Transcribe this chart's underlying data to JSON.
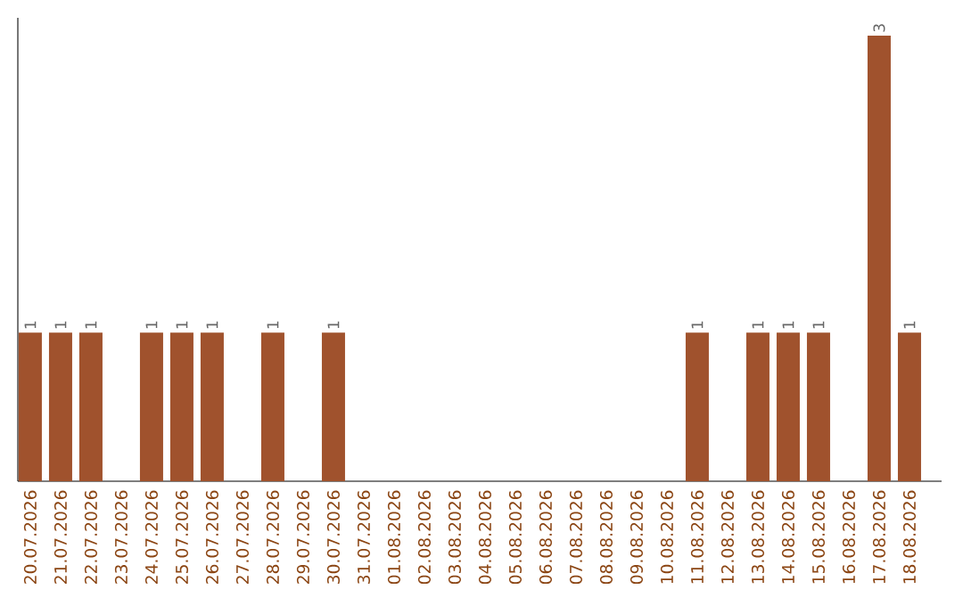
{
  "chart_data": {
    "type": "bar",
    "categories": [
      "20.07.2026",
      "21.07.2026",
      "22.07.2026",
      "23.07.2026",
      "24.07.2026",
      "25.07.2026",
      "26.07.2026",
      "27.07.2026",
      "28.07.2026",
      "29.07.2026",
      "30.07.2026",
      "31.07.2026",
      "01.08.2026",
      "02.08.2026",
      "03.08.2026",
      "04.08.2026",
      "05.08.2026",
      "06.08.2026",
      "07.08.2026",
      "08.08.2026",
      "09.08.2026",
      "10.08.2026",
      "11.08.2026",
      "12.08.2026",
      "13.08.2026",
      "14.08.2026",
      "15.08.2026",
      "16.08.2026",
      "17.08.2026",
      "18.08.2026"
    ],
    "values": [
      1,
      1,
      1,
      0,
      1,
      1,
      1,
      0,
      1,
      0,
      1,
      0,
      0,
      0,
      0,
      0,
      0,
      0,
      0,
      0,
      0,
      0,
      1,
      0,
      1,
      1,
      1,
      0,
      3,
      1
    ],
    "value_labels": [
      "1",
      "1",
      "1",
      null,
      "1",
      "1",
      "1",
      null,
      "1",
      null,
      "1",
      null,
      null,
      null,
      null,
      null,
      null,
      null,
      null,
      null,
      null,
      null,
      "1",
      null,
      "1",
      "1",
      "1",
      null,
      "3",
      "1"
    ],
    "color": "#a0522d",
    "ylim": [
      0,
      3.12
    ],
    "grid": false
  }
}
